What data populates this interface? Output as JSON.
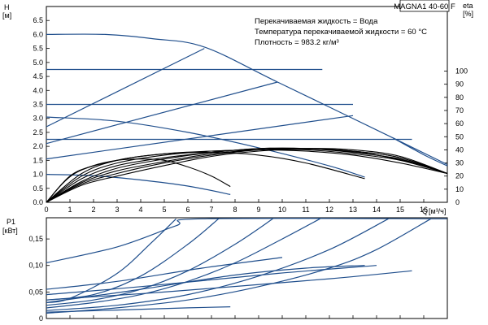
{
  "chart_data": [
    {
      "type": "line",
      "title": "MAGNA1 40-60 F",
      "annotations": [
        "Перекачиваемая жидкость = Вода",
        "Температура перекачиваемой жидкости = 60 °C",
        "Плотность = 983.2 кг/м³"
      ],
      "x_label": "Q",
      "x_unit": "[м³/ч]",
      "y_label": "H",
      "y_unit": "[м]",
      "y2_label": "eta",
      "y2_unit": "[%]",
      "xlim": [
        0,
        17
      ],
      "ylim": [
        0,
        7
      ],
      "y2lim": [
        0,
        100
      ],
      "x_ticks": [
        "0",
        "1",
        "2",
        "3",
        "4",
        "5",
        "6",
        "7",
        "8",
        "9",
        "10",
        "11",
        "12",
        "13",
        "14",
        "15",
        "16"
      ],
      "y_ticks": [
        "0.0",
        "0.5",
        "1.0",
        "1.5",
        "2.0",
        "2.5",
        "3.0",
        "3.5",
        "4.0",
        "4.5",
        "5.0",
        "5.5",
        "6.0",
        "6.5"
      ],
      "y2_ticks": [
        "0",
        "10",
        "20",
        "30",
        "40",
        "50",
        "60",
        "70",
        "80",
        "90",
        "100"
      ],
      "grid": false,
      "series": [
        {
          "role": "head_max",
          "color": "#1f4e8c",
          "points": [
            [
              0,
              6.0
            ],
            [
              2.5,
              6.0
            ],
            [
              4.5,
              5.85
            ],
            [
              6.7,
              5.55
            ],
            [
              9.8,
              4.3
            ],
            [
              14.7,
              2.3
            ],
            [
              17,
              1.35
            ]
          ]
        },
        {
          "role": "head_const",
          "color": "#1f4e8c",
          "points": [
            [
              0,
              4.75
            ],
            [
              11.7,
              4.75
            ]
          ]
        },
        {
          "role": "head_const",
          "color": "#1f4e8c",
          "points": [
            [
              0,
              3.5
            ],
            [
              13.0,
              3.5
            ]
          ]
        },
        {
          "role": "head_const",
          "color": "#1f4e8c",
          "points": [
            [
              0,
              2.25
            ],
            [
              15.5,
              2.25
            ]
          ]
        },
        {
          "role": "head_prop",
          "color": "#1f4e8c",
          "points": [
            [
              0,
              2.7
            ],
            [
              6.7,
              5.5
            ]
          ]
        },
        {
          "role": "head_prop",
          "color": "#1f4e8c",
          "points": [
            [
              0,
              2.1
            ],
            [
              9.8,
              4.3
            ]
          ]
        },
        {
          "role": "head_prop",
          "color": "#1f4e8c",
          "points": [
            [
              0,
              1.55
            ],
            [
              13.0,
              3.1
            ]
          ]
        },
        {
          "role": "head_min",
          "color": "#1f4e8c",
          "points": [
            [
              0,
              3.05
            ],
            [
              3,
              2.9
            ],
            [
              6,
              2.5
            ],
            [
              9,
              1.95
            ],
            [
              12,
              1.3
            ],
            [
              13.5,
              0.9
            ]
          ]
        },
        {
          "role": "head_min",
          "color": "#1f4e8c",
          "points": [
            [
              0,
              1.0
            ],
            [
              2,
              0.95
            ],
            [
              4,
              0.8
            ],
            [
              6,
              0.58
            ],
            [
              7.8,
              0.28
            ]
          ]
        },
        {
          "role": "head_max_lower",
          "color": "#1f4e8c",
          "points": [
            [
              14.7,
              2.3
            ],
            [
              16,
              1.7
            ],
            [
              17,
              1.3
            ]
          ]
        },
        {
          "role": "efficiency",
          "color": "#000000",
          "points": [
            [
              0,
              0
            ],
            [
              1,
              20
            ],
            [
              2,
              28
            ],
            [
              3,
              32
            ],
            [
              4,
              33
            ],
            [
              5,
              32
            ],
            [
              6,
              27
            ],
            [
              7,
              20
            ],
            [
              7.8,
              12
            ]
          ]
        },
        {
          "role": "efficiency",
          "color": "#000000",
          "points": [
            [
              0,
              0
            ],
            [
              1.2,
              22
            ],
            [
              3,
              32
            ],
            [
              5,
              37
            ],
            [
              7,
              38
            ],
            [
              9,
              36
            ],
            [
              11,
              30
            ],
            [
              13.5,
              18
            ]
          ]
        },
        {
          "role": "efficiency",
          "color": "#000000",
          "points": [
            [
              0,
              0
            ],
            [
              1.5,
              22
            ],
            [
              3,
              32
            ],
            [
              5,
              37
            ],
            [
              7,
              39
            ],
            [
              9,
              40
            ],
            [
              11,
              39
            ],
            [
              13,
              36
            ],
            [
              15,
              30
            ],
            [
              17,
              22
            ]
          ]
        },
        {
          "role": "efficiency",
          "color": "#000000",
          "points": [
            [
              0,
              0
            ],
            [
              1.5,
              20
            ],
            [
              3,
              30
            ],
            [
              5,
              36
            ],
            [
              7,
              39
            ],
            [
              9,
              40
            ],
            [
              11,
              40
            ],
            [
              13,
              37
            ],
            [
              15,
              32
            ],
            [
              17,
              22
            ]
          ]
        },
        {
          "role": "efficiency",
          "color": "#000000",
          "points": [
            [
              0,
              0
            ],
            [
              1.5,
              18
            ],
            [
              3,
              28
            ],
            [
              5,
              34
            ],
            [
              7,
              38
            ],
            [
              9,
              41
            ],
            [
              11,
              41
            ],
            [
              13,
              38
            ],
            [
              15,
              33
            ],
            [
              17,
              22
            ]
          ]
        },
        {
          "role": "efficiency",
          "color": "#000000",
          "points": [
            [
              0,
              0
            ],
            [
              1.5,
              16
            ],
            [
              3,
              26
            ],
            [
              5,
              33
            ],
            [
              7,
              38
            ],
            [
              9,
              41
            ],
            [
              10,
              41
            ],
            [
              12,
              40
            ],
            [
              14,
              36
            ],
            [
              16,
              28
            ],
            [
              17,
              22
            ]
          ]
        },
        {
          "role": "efficiency",
          "color": "#000000",
          "points": [
            [
              0,
              0
            ],
            [
              1.5,
              15
            ],
            [
              3,
              24
            ],
            [
              5,
              31
            ],
            [
              7,
              37
            ],
            [
              9,
              40
            ],
            [
              11,
              41
            ],
            [
              13,
              39
            ],
            [
              15,
              34
            ],
            [
              17,
              22
            ]
          ]
        },
        {
          "role": "efficiency",
          "color": "#000000",
          "points": [
            [
              0,
              0
            ],
            [
              1.5,
              14
            ],
            [
              3,
              22
            ],
            [
              5,
              30
            ],
            [
              7,
              36
            ],
            [
              9,
              40
            ],
            [
              11,
              41
            ],
            [
              13,
              39
            ],
            [
              15,
              34
            ],
            [
              17,
              22
            ]
          ]
        },
        {
          "role": "efficiency",
          "color": "#000000",
          "points": [
            [
              0,
              0
            ],
            [
              1.5,
              13
            ],
            [
              3,
              20
            ],
            [
              5,
              28
            ],
            [
              7,
              35
            ],
            [
              9,
              39
            ],
            [
              11,
              41
            ],
            [
              13,
              40
            ],
            [
              15,
              35
            ],
            [
              17,
              22
            ]
          ]
        }
      ]
    },
    {
      "type": "line",
      "x_label": "Q",
      "x_unit": "[м³/ч]",
      "y_label": "P1",
      "y_unit": "[кВт]",
      "xlim": [
        0,
        17
      ],
      "ylim": [
        0,
        0.19
      ],
      "y_ticks": [
        "0",
        "0,05",
        "0,10",
        "0,15"
      ],
      "grid": false,
      "series": [
        {
          "role": "power_max",
          "color": "#1f4e8c",
          "points": [
            [
              0,
              0.105
            ],
            [
              3,
              0.135
            ],
            [
              5.5,
              0.175
            ],
            [
              6.6,
              0.188
            ],
            [
              17,
              0.188
            ]
          ]
        },
        {
          "role": "power",
          "color": "#1f4e8c",
          "points": [
            [
              0,
              0.03
            ],
            [
              1,
              0.038
            ],
            [
              3,
              0.085
            ],
            [
              4.5,
              0.145
            ],
            [
              5.5,
              0.188
            ]
          ]
        },
        {
          "role": "power",
          "color": "#1f4e8c",
          "points": [
            [
              0,
              0.035
            ],
            [
              2,
              0.045
            ],
            [
              4,
              0.08
            ],
            [
              6,
              0.14
            ],
            [
              7.3,
              0.188
            ]
          ]
        },
        {
          "role": "power",
          "color": "#1f4e8c",
          "points": [
            [
              0,
              0.025
            ],
            [
              2,
              0.035
            ],
            [
              4,
              0.055
            ],
            [
              6,
              0.09
            ],
            [
              8,
              0.14
            ],
            [
              9.6,
              0.188
            ]
          ]
        },
        {
          "role": "power",
          "color": "#1f4e8c",
          "points": [
            [
              0,
              0.02
            ],
            [
              2,
              0.03
            ],
            [
              4,
              0.045
            ],
            [
              6,
              0.07
            ],
            [
              8,
              0.105
            ],
            [
              10,
              0.15
            ],
            [
              11.6,
              0.188
            ]
          ]
        },
        {
          "role": "power",
          "color": "#1f4e8c",
          "points": [
            [
              0,
              0.015
            ],
            [
              3,
              0.025
            ],
            [
              6,
              0.045
            ],
            [
              9,
              0.08
            ],
            [
              12,
              0.13
            ],
            [
              14.5,
              0.188
            ]
          ]
        },
        {
          "role": "power",
          "color": "#1f4e8c",
          "points": [
            [
              0,
              0.01
            ],
            [
              3,
              0.02
            ],
            [
              6,
              0.035
            ],
            [
              9,
              0.06
            ],
            [
              12,
              0.095
            ],
            [
              14,
              0.13
            ],
            [
              16.3,
              0.188
            ]
          ]
        },
        {
          "role": "power_prop",
          "color": "#1f4e8c",
          "points": [
            [
              0,
              0.055
            ],
            [
              3,
              0.07
            ],
            [
              6.6,
              0.095
            ],
            [
              10,
              0.115
            ]
          ]
        },
        {
          "role": "power_prop",
          "color": "#1f4e8c",
          "points": [
            [
              0,
              0.045
            ],
            [
              4,
              0.06
            ],
            [
              9.8,
              0.085
            ],
            [
              14,
              0.1
            ]
          ]
        },
        {
          "role": "power_prop",
          "color": "#1f4e8c",
          "points": [
            [
              0,
              0.035
            ],
            [
              5,
              0.05
            ],
            [
              12,
              0.075
            ],
            [
              15.5,
              0.09
            ]
          ]
        },
        {
          "role": "power_min",
          "color": "#1f4e8c",
          "points": [
            [
              0,
              0.03
            ],
            [
              4,
              0.055
            ],
            [
              8,
              0.082
            ],
            [
              11,
              0.095
            ],
            [
              13.5,
              0.1
            ]
          ]
        },
        {
          "role": "power_min",
          "color": "#1f4e8c",
          "points": [
            [
              0,
              0.012
            ],
            [
              3,
              0.016
            ],
            [
              6,
              0.02
            ],
            [
              7.8,
              0.022
            ]
          ]
        }
      ]
    }
  ]
}
